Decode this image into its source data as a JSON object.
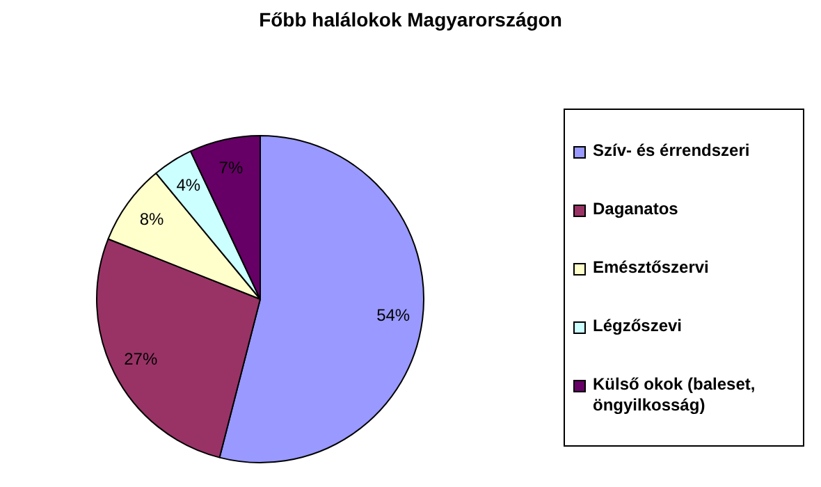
{
  "chart_data": {
    "type": "pie",
    "title": "Főbb halálokok Magyarországon",
    "categories": [
      "Szív- és érrendszeri",
      "Daganatos",
      "Emésztőszervi",
      "Légzőszevi",
      "Külső okok (baleset, öngyilkosság)"
    ],
    "values": [
      54,
      27,
      8,
      4,
      7
    ],
    "colors": [
      "#9999ff",
      "#993366",
      "#ffffcc",
      "#ccffff",
      "#660066"
    ],
    "value_labels": [
      "54%",
      "27%",
      "8%",
      "4%",
      "7%"
    ],
    "legend": "right"
  }
}
